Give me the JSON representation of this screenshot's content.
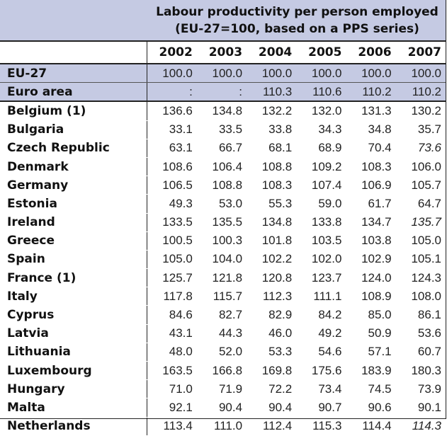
{
  "table": {
    "title_line1": "Labour productivity per person employed",
    "title_line2": "(EU-27=100, based on a PPS series)",
    "years": [
      "2002",
      "2003",
      "2004",
      "2005",
      "2006",
      "2007"
    ],
    "rows": [
      {
        "name": "EU-27",
        "values": [
          "100.0",
          "100.0",
          "100.0",
          "100.0",
          "100.0",
          "100.0"
        ],
        "shaded": true
      },
      {
        "name": "Euro area",
        "values": [
          ":",
          ":",
          "110.3",
          "110.6",
          "110.2",
          "110.2"
        ],
        "shaded": true
      },
      {
        "name": "Belgium (1)",
        "values": [
          "136.6",
          "134.8",
          "132.2",
          "132.0",
          "131.3",
          "130.2"
        ]
      },
      {
        "name": "Bulgaria",
        "values": [
          "33.1",
          "33.5",
          "33.8",
          "34.3",
          "34.8",
          "35.7"
        ]
      },
      {
        "name": "Czech Republic",
        "values": [
          "63.1",
          "66.7",
          "68.1",
          "68.9",
          "70.4",
          "73.6"
        ],
        "italic_last": true
      },
      {
        "name": "Denmark",
        "values": [
          "108.6",
          "106.4",
          "108.8",
          "109.2",
          "108.3",
          "106.0"
        ]
      },
      {
        "name": "Germany",
        "values": [
          "106.5",
          "108.8",
          "108.3",
          "107.4",
          "106.9",
          "105.7"
        ]
      },
      {
        "name": "Estonia",
        "values": [
          "49.3",
          "53.0",
          "55.3",
          "59.0",
          "61.7",
          "64.7"
        ]
      },
      {
        "name": "Ireland",
        "values": [
          "133.5",
          "135.5",
          "134.8",
          "133.8",
          "134.7",
          "135.7"
        ],
        "italic_last": true
      },
      {
        "name": "Greece",
        "values": [
          "100.5",
          "100.3",
          "101.8",
          "103.5",
          "103.8",
          "105.0"
        ]
      },
      {
        "name": "Spain",
        "values": [
          "105.0",
          "104.0",
          "102.2",
          "102.0",
          "102.9",
          "105.1"
        ]
      },
      {
        "name": "France (1)",
        "values": [
          "125.7",
          "121.8",
          "120.8",
          "123.7",
          "124.0",
          "124.3"
        ]
      },
      {
        "name": "Italy",
        "values": [
          "117.8",
          "115.7",
          "112.3",
          "111.1",
          "108.9",
          "108.0"
        ]
      },
      {
        "name": "Cyprus",
        "values": [
          "84.6",
          "82.7",
          "82.9",
          "84.2",
          "85.0",
          "86.1"
        ]
      },
      {
        "name": "Latvia",
        "values": [
          "43.1",
          "44.3",
          "46.0",
          "49.2",
          "50.9",
          "53.6"
        ]
      },
      {
        "name": "Lithuania",
        "values": [
          "48.0",
          "52.0",
          "53.3",
          "54.6",
          "57.1",
          "60.7"
        ]
      },
      {
        "name": "Luxembourg",
        "values": [
          "163.5",
          "166.8",
          "169.8",
          "175.6",
          "183.9",
          "180.3"
        ]
      },
      {
        "name": "Hungary",
        "values": [
          "71.0",
          "71.9",
          "72.2",
          "73.4",
          "74.5",
          "73.9"
        ]
      },
      {
        "name": "Malta",
        "values": [
          "92.1",
          "90.4",
          "90.4",
          "90.7",
          "90.6",
          "90.1"
        ]
      },
      {
        "name": "Netherlands",
        "values": [
          "113.4",
          "111.0",
          "112.4",
          "115.3",
          "114.4",
          "114.3"
        ],
        "italic_last": true
      }
    ]
  },
  "colors": {
    "header_fill": "#c5cae3",
    "rule": "#222222"
  }
}
